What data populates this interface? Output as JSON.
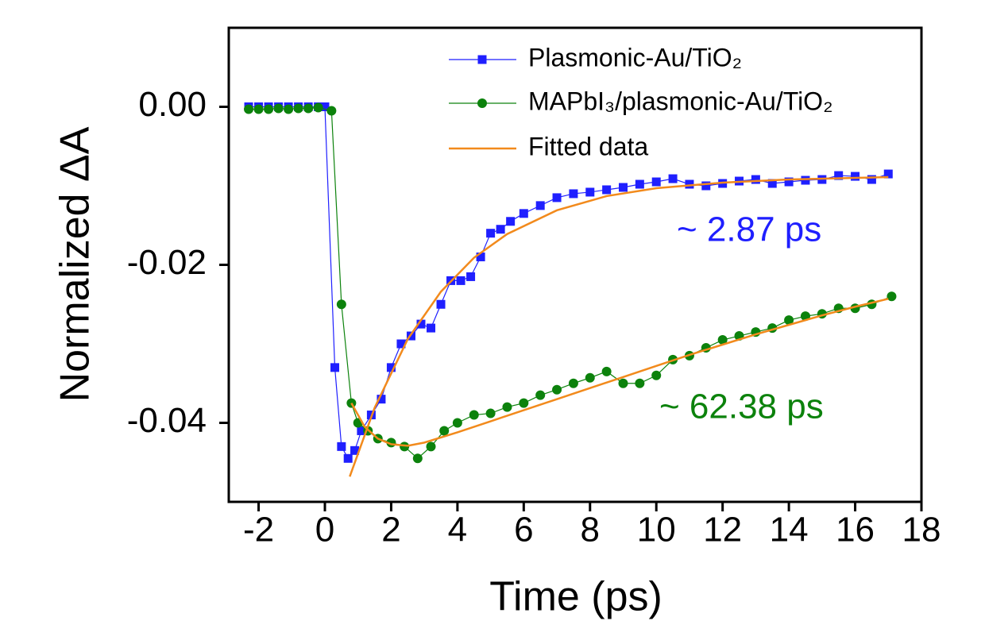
{
  "chart_data": {
    "type": "line",
    "xlabel": "Time (ps)",
    "ylabel": "Normalized ΔA",
    "xlim": [
      -2.9,
      18
    ],
    "ylim": [
      -0.05,
      0.01
    ],
    "xticks": [
      -2,
      0,
      2,
      4,
      6,
      8,
      10,
      12,
      14,
      16,
      18
    ],
    "yticks": [
      {
        "value": 0,
        "label": "0.00"
      },
      {
        "value": -0.02,
        "label": "-0.02"
      },
      {
        "value": -0.04,
        "label": "-0.04"
      }
    ],
    "series": [
      {
        "name": "Plasmonic-Au/TiO₂",
        "color": "#1f1fff",
        "marker": "square",
        "x": [
          -2.3,
          -2.0,
          -1.7,
          -1.4,
          -1.1,
          -0.8,
          -0.5,
          -0.2,
          0.0,
          0.3,
          0.5,
          0.7,
          0.9,
          1.1,
          1.4,
          1.7,
          2.0,
          2.3,
          2.6,
          2.9,
          3.2,
          3.5,
          3.8,
          4.1,
          4.4,
          4.7,
          5.0,
          5.3,
          5.6,
          6.0,
          6.5,
          7.0,
          7.5,
          8.0,
          8.5,
          9.0,
          9.5,
          10.0,
          10.5,
          11.0,
          11.5,
          12.0,
          12.5,
          13.0,
          13.5,
          14.0,
          14.5,
          15.0,
          15.5,
          16.0,
          16.5,
          17.0
        ],
        "values": [
          0,
          0,
          0,
          0,
          0,
          0,
          0,
          0,
          0,
          -0.033,
          -0.043,
          -0.0445,
          -0.0435,
          -0.041,
          -0.039,
          -0.037,
          -0.033,
          -0.03,
          -0.029,
          -0.0275,
          -0.028,
          -0.025,
          -0.022,
          -0.022,
          -0.0215,
          -0.019,
          -0.016,
          -0.0155,
          -0.0145,
          -0.0135,
          -0.0125,
          -0.0115,
          -0.011,
          -0.0108,
          -0.0105,
          -0.0102,
          -0.0098,
          -0.0095,
          -0.0091,
          -0.0098,
          -0.01,
          -0.0097,
          -0.0094,
          -0.0092,
          -0.0097,
          -0.0095,
          -0.0093,
          -0.0092,
          -0.0087,
          -0.0088,
          -0.0092,
          -0.0085
        ]
      },
      {
        "name": "MAPbI₃/plasmonic-Au/TiO₂",
        "color": "#0c820c",
        "marker": "circle",
        "x": [
          -2.3,
          -2.0,
          -1.7,
          -1.4,
          -1.1,
          -0.8,
          -0.5,
          -0.2,
          0.2,
          0.5,
          0.8,
          1.0,
          1.3,
          1.6,
          2.0,
          2.4,
          2.8,
          3.2,
          3.6,
          4.0,
          4.5,
          5.0,
          5.5,
          6.0,
          6.5,
          7.0,
          7.5,
          8.0,
          8.5,
          9.0,
          9.5,
          10.0,
          10.5,
          11.0,
          11.5,
          12.0,
          12.5,
          13.0,
          13.5,
          14.0,
          14.5,
          15.0,
          15.5,
          16.0,
          16.5,
          17.1
        ],
        "values": [
          -0.0003,
          -0.0003,
          -0.0003,
          -0.0002,
          -0.0003,
          -0.0002,
          -0.0002,
          -0.0001,
          -0.0005,
          -0.025,
          -0.0375,
          -0.04,
          -0.041,
          -0.042,
          -0.0425,
          -0.043,
          -0.0445,
          -0.043,
          -0.041,
          -0.04,
          -0.039,
          -0.0388,
          -0.038,
          -0.0375,
          -0.0365,
          -0.0358,
          -0.035,
          -0.0343,
          -0.0335,
          -0.035,
          -0.035,
          -0.034,
          -0.032,
          -0.0315,
          -0.0305,
          -0.0295,
          -0.029,
          -0.0285,
          -0.028,
          -0.027,
          -0.0265,
          -0.0262,
          -0.0255,
          -0.0255,
          -0.025,
          -0.024
        ]
      }
    ],
    "fits": {
      "name": "Fitted data",
      "color": "#f28a1c",
      "curves": [
        {
          "x": [
            0.75,
            1.5,
            2.5,
            3.5,
            4.5,
            5.5,
            7,
            8.5,
            10,
            12,
            14,
            17
          ],
          "values": [
            -0.0468,
            -0.0381,
            -0.0294,
            -0.0234,
            -0.0191,
            -0.0161,
            -0.0131,
            -0.0113,
            -0.0103,
            -0.0096,
            -0.0092,
            -0.0089
          ]
        },
        {
          "x": [
            0.8,
            1.2,
            1.6,
            2.0,
            2.5,
            3.0,
            4.0,
            5.0,
            6.0,
            7.0,
            8.0,
            9.0,
            10.0,
            11.0,
            12.0,
            13.0,
            14.0,
            15.0,
            16.0,
            17.0
          ],
          "values": [
            -0.0375,
            -0.0405,
            -0.042,
            -0.0427,
            -0.0429,
            -0.0425,
            -0.0412,
            -0.0398,
            -0.0384,
            -0.037,
            -0.0356,
            -0.0342,
            -0.0328,
            -0.0314,
            -0.0301,
            -0.0288,
            -0.0276,
            -0.0264,
            -0.0253,
            -0.0243
          ]
        }
      ]
    },
    "annotations": [
      {
        "text": "~ 2.87 ps",
        "color": "#1f1fff"
      },
      {
        "text": "~ 62.38 ps",
        "color": "#0c820c"
      }
    ]
  }
}
